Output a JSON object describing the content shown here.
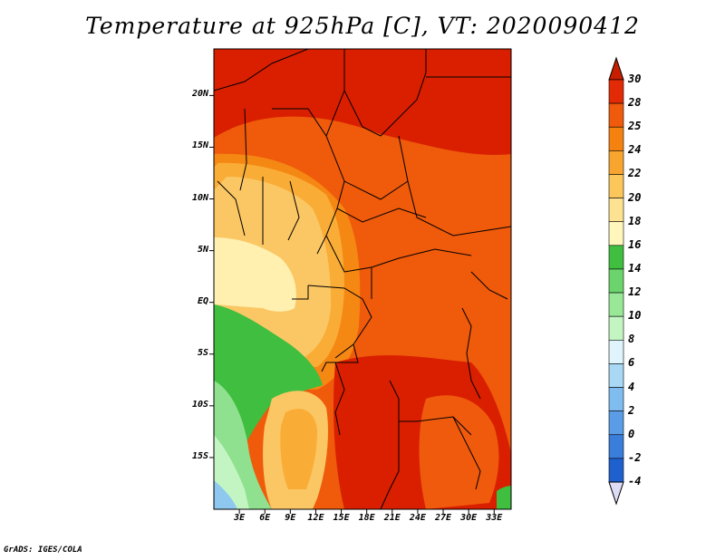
{
  "title": "Temperature at 925hPa [C], VT: 2020090412",
  "credit": "GrADS: IGES/COLA",
  "map": {
    "lat_ticks": [
      {
        "label": "20N",
        "lat": 20
      },
      {
        "label": "15N",
        "lat": 15
      },
      {
        "label": "10N",
        "lat": 10
      },
      {
        "label": "5N",
        "lat": 5
      },
      {
        "label": "EQ",
        "lat": 0
      },
      {
        "label": "5S",
        "lat": -5
      },
      {
        "label": "10S",
        "lat": -10
      },
      {
        "label": "15S",
        "lat": -15
      }
    ],
    "lon_ticks": [
      {
        "label": "3E",
        "lon": 3
      },
      {
        "label": "6E",
        "lon": 6
      },
      {
        "label": "9E",
        "lon": 9
      },
      {
        "label": "12E",
        "lon": 12
      },
      {
        "label": "15E",
        "lon": 15
      },
      {
        "label": "18E",
        "lon": 18
      },
      {
        "label": "21E",
        "lon": 21
      },
      {
        "label": "24E",
        "lon": 24
      },
      {
        "label": "27E",
        "lon": 27
      },
      {
        "label": "30E",
        "lon": 30
      },
      {
        "label": "33E",
        "lon": 33
      }
    ]
  },
  "colorbar": {
    "labels": [
      "30",
      "28",
      "25",
      "24",
      "22",
      "20",
      "18",
      "16",
      "14",
      "12",
      "10",
      "8",
      "6",
      "4",
      "2",
      "0",
      "-2",
      "-4"
    ],
    "colors": [
      "#c81e00",
      "#e32a07",
      "#f05a0c",
      "#f5820f",
      "#f8a530",
      "#fbc65a",
      "#fde391",
      "#fff6bb",
      "#3fbe3f",
      "#6cd46c",
      "#98e898",
      "#c3f5c3",
      "#e0f4fb",
      "#a8d8f4",
      "#7fbcef",
      "#5a9de6",
      "#3a7edc",
      "#1f60cf",
      "#1643b4",
      "#0e288d"
    ],
    "top_arrow_color": "#c81e00",
    "bottom_arrow_color": "#dcdcf6"
  }
}
